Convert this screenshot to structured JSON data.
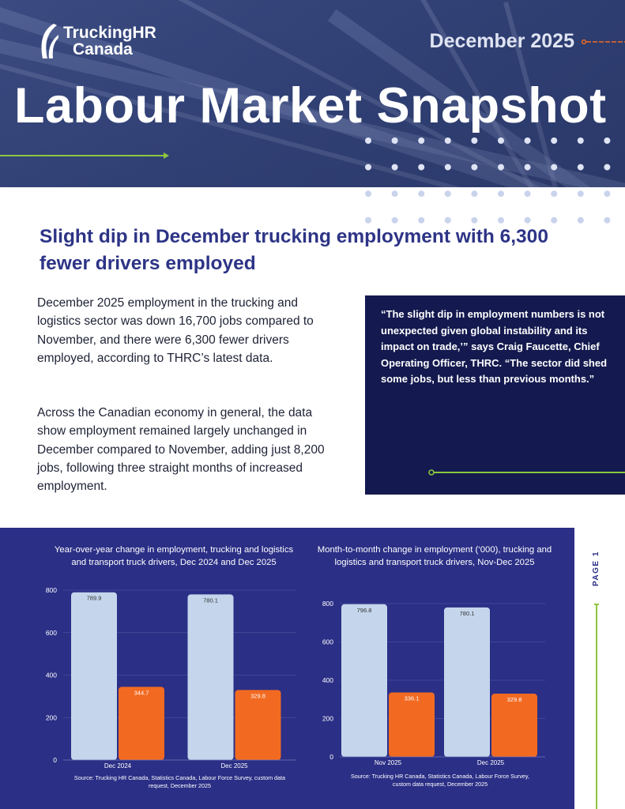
{
  "header": {
    "logo_line1": "TruckingHR",
    "logo_line2": "Canada",
    "date": "December 2025",
    "title": "Labour Market Snapshot"
  },
  "headline": "Slight dip in December trucking employment with 6,300 fewer drivers employed",
  "paragraphs": [
    "December 2025 employment in the trucking and logistics sector was down 16,700 jobs compared to November, and there were 6,300 fewer drivers employed, according to THRC’s latest data.",
    "Across the Canadian economy in general, the data show employment remained largely unchanged in December compared to November, adding just 8,200 jobs, following three straight months of increased employment."
  ],
  "quote": "“The slight dip in employment numbers is not unexpected given global instability and its impact on trade,’” says Craig Faucette, Chief Operating Officer, THRC. “The sector did shed some jobs, but less than previous months.”",
  "page_label": "PAGE 1",
  "colors": {
    "navy": "#141a4f",
    "panel": "#2b2f86",
    "bar_light": "#c5d6ec",
    "bar_orange": "#f26a21",
    "accent_green": "#8dc63f",
    "headline": "#2d3486"
  },
  "chart_data": [
    {
      "type": "bar",
      "title": "Year-over-year change in employment, trucking and logistics and transport truck drivers, Dec 2024 and Dec 2025",
      "categories": [
        "Dec 2024",
        "Dec 2025"
      ],
      "series": [
        {
          "name": "Trucking and logistics",
          "values": [
            789.9,
            780.1
          ],
          "labels": [
            "789.9",
            "780.1"
          ]
        },
        {
          "name": "Transport truck drivers",
          "values": [
            344.7,
            329.8
          ],
          "labels": [
            "344.7",
            "329.8"
          ]
        }
      ],
      "yticks": [
        0,
        200,
        400,
        600,
        800
      ],
      "ylim": [
        0,
        800
      ],
      "source": "Source: Trucking HR Canada, Statistics Canada, Labour Force Survey, custom data request, December 2025"
    },
    {
      "type": "bar",
      "title": "Month-to-month change in employment (‘000), trucking and logistics and transport truck drivers, Nov-Dec 2025",
      "categories": [
        "Nov 2025",
        "Dec 2025"
      ],
      "series": [
        {
          "name": "Trucking and logistics",
          "values": [
            796.8,
            780.1
          ],
          "labels": [
            "796.8",
            "780.1"
          ]
        },
        {
          "name": "Transport truck drivers",
          "values": [
            336.1,
            329.8
          ],
          "labels": [
            "336.1",
            "329.8"
          ]
        }
      ],
      "yticks": [
        0,
        200,
        400,
        600,
        800
      ],
      "ylim": [
        0,
        800
      ],
      "source": "Source: Trucking HR Canada, Statistics Canada, Labour Force Survey, custom data request, December 2025"
    }
  ]
}
